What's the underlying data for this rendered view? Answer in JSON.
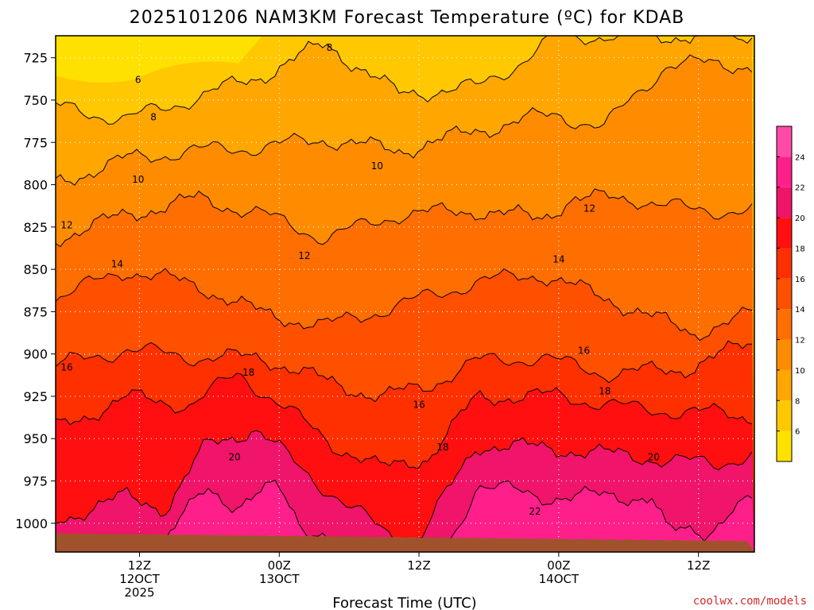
{
  "title": "2025101206 NAM3KM Forecast Temperature (ºC) for KDAB",
  "credit": "coolwx.com/models",
  "chart_data": {
    "type": "heatmap",
    "title": "2025101206 NAM3KM Forecast Temperature (ºC) for KDAB",
    "xlabel": "Forecast Time (UTC)",
    "ylabel": "",
    "y_axis": {
      "ticks": [
        725,
        750,
        775,
        800,
        825,
        850,
        875,
        900,
        925,
        950,
        975,
        1000
      ],
      "range_hpa": [
        712,
        1017
      ],
      "inverted": true
    },
    "x_axis": {
      "range_hours": [
        6,
        56
      ],
      "ticks": [
        {
          "hour": 12,
          "lines": [
            "12Z",
            "12OCT",
            "2025"
          ]
        },
        {
          "hour": 22,
          "lines": [
            "00Z",
            "13OCT"
          ]
        },
        {
          "hour": 32,
          "lines": [
            "12Z"
          ]
        },
        {
          "hour": 42,
          "lines": [
            "00Z",
            "14OCT"
          ]
        },
        {
          "hour": 52,
          "lines": [
            "12Z"
          ]
        }
      ]
    },
    "grid": true,
    "colorbar": {
      "levels": [
        6,
        8,
        10,
        12,
        14,
        16,
        18,
        20,
        22,
        24
      ],
      "colors": [
        "#ffe100",
        "#ffc800",
        "#ffa600",
        "#ff8c00",
        "#ff6e00",
        "#ff5000",
        "#ff3000",
        "#ff0f0f",
        "#f0146a",
        "#ff1f8a",
        "#ff4aa6"
      ]
    },
    "contour_labels": [
      {
        "text": "8",
        "hour": 25.6,
        "hpa": 719
      },
      {
        "text": "6",
        "hour": 11.9,
        "hpa": 738
      },
      {
        "text": "8",
        "hour": 13.0,
        "hpa": 760
      },
      {
        "text": "10",
        "hour": 11.9,
        "hpa": 797
      },
      {
        "text": "10",
        "hour": 29.0,
        "hpa": 789
      },
      {
        "text": "12",
        "hour": 6.8,
        "hpa": 824
      },
      {
        "text": "12",
        "hour": 44.2,
        "hpa": 814
      },
      {
        "text": "12",
        "hour": 23.8,
        "hpa": 842
      },
      {
        "text": "14",
        "hour": 10.4,
        "hpa": 847
      },
      {
        "text": "14",
        "hour": 42.0,
        "hpa": 844
      },
      {
        "text": "16",
        "hour": 6.8,
        "hpa": 908
      },
      {
        "text": "16",
        "hour": 43.8,
        "hpa": 898
      },
      {
        "text": "16",
        "hour": 32.0,
        "hpa": 930
      },
      {
        "text": "18",
        "hour": 19.8,
        "hpa": 911
      },
      {
        "text": "18",
        "hour": 45.3,
        "hpa": 922
      },
      {
        "text": "18",
        "hour": 33.7,
        "hpa": 955
      },
      {
        "text": "20",
        "hour": 18.8,
        "hpa": 961
      },
      {
        "text": "20",
        "hour": 48.8,
        "hpa": 961
      },
      {
        "text": "22",
        "hour": 40.3,
        "hpa": 993
      }
    ]
  },
  "colors": {
    "ground": "#a0522d",
    "frame": "#000000",
    "grid": "#ffffff",
    "contour": "#000000"
  }
}
